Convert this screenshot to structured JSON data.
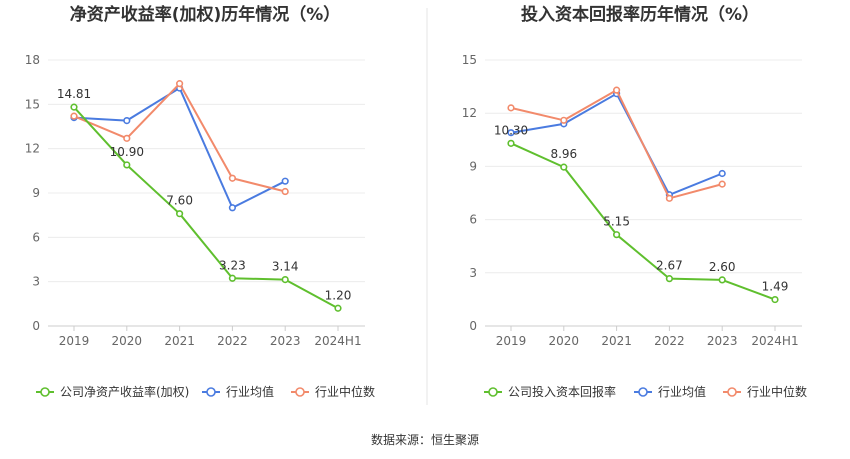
{
  "chart_data": [
    {
      "type": "line",
      "title": "净资产收益率(加权)历年情况（%）",
      "categories": [
        "2019",
        "2020",
        "2021",
        "2022",
        "2023",
        "2024H1"
      ],
      "ylim": [
        0,
        18
      ],
      "yticks": [
        "0",
        "3",
        "6",
        "9",
        "12",
        "15",
        "18"
      ],
      "grid": true,
      "legend_position": "bottom-left",
      "series": [
        {
          "name": "公司净资产收益率(加权)",
          "color": "#5fbf2e",
          "values": [
            14.81,
            10.9,
            7.6,
            3.23,
            3.14,
            1.2
          ],
          "labels": [
            "14.81",
            "10.90",
            "7.60",
            "3.23",
            "3.14",
            "1.20"
          ]
        },
        {
          "name": "行业均值",
          "color": "#4a7be0",
          "values": [
            14.1,
            13.9,
            16.1,
            8.0,
            9.8,
            null
          ]
        },
        {
          "name": "行业中位数",
          "color": "#f28a6b",
          "values": [
            14.2,
            12.7,
            16.4,
            10.0,
            9.1,
            null
          ]
        }
      ]
    },
    {
      "type": "line",
      "title": "投入资本回报率历年情况（%）",
      "categories": [
        "2019",
        "2020",
        "2021",
        "2022",
        "2023",
        "2024H1"
      ],
      "ylim": [
        0,
        15
      ],
      "yticks": [
        "0",
        "3",
        "6",
        "9",
        "12",
        "15"
      ],
      "grid": true,
      "legend_position": "bottom-left",
      "series": [
        {
          "name": "公司投入资本回报率",
          "color": "#5fbf2e",
          "values": [
            10.3,
            8.96,
            5.15,
            2.67,
            2.6,
            1.49
          ],
          "labels": [
            "10.30",
            "8.96",
            "5.15",
            "2.67",
            "2.60",
            "1.49"
          ]
        },
        {
          "name": "行业均值",
          "color": "#4a7be0",
          "values": [
            10.9,
            11.4,
            13.1,
            7.4,
            8.6,
            null
          ]
        },
        {
          "name": "行业中位数",
          "color": "#f28a6b",
          "values": [
            12.3,
            11.6,
            13.3,
            7.2,
            8.0,
            null
          ]
        }
      ]
    }
  ],
  "source_text": "数据来源：恒生聚源"
}
